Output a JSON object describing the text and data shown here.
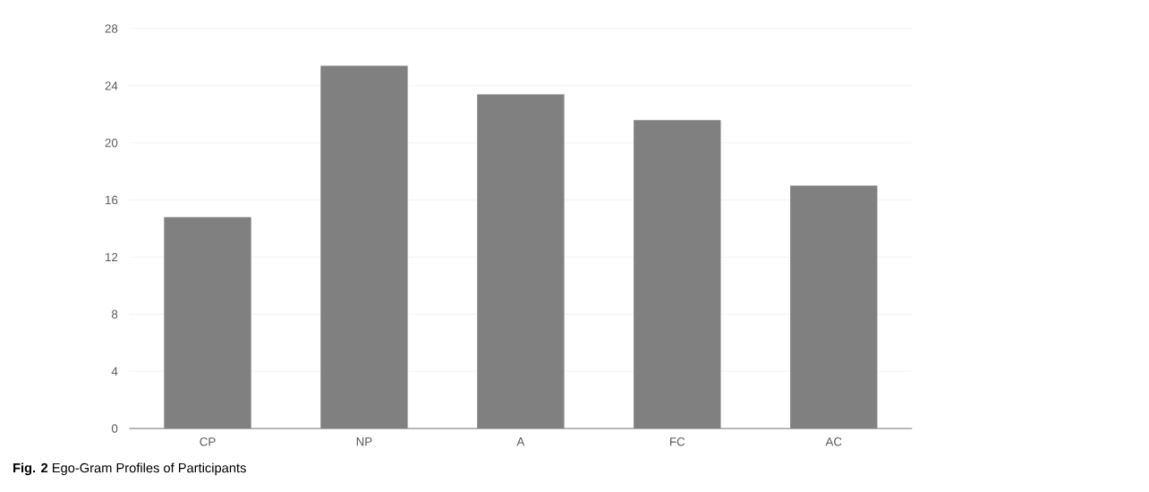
{
  "chart_data": {
    "type": "bar",
    "title": "**Fig. 2** Ego-Gram Profiles of Participants",
    "categories": [
      "CP",
      "NP",
      "A",
      "FC",
      "AC"
    ],
    "values": [
      14.8,
      25.4,
      23.4,
      21.6,
      17.0
    ],
    "color": "#808080",
    "ylim": [
      0,
      28
    ],
    "yticks": [
      0,
      4,
      8,
      12,
      16,
      20,
      24,
      28
    ],
    "grid": "y"
  }
}
